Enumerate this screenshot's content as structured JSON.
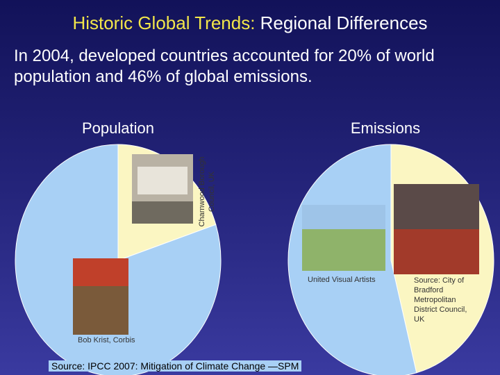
{
  "title": {
    "lead": "Historic Global Trends:",
    "rest": "Regional Differences"
  },
  "subtitle": "In 2004, developed countries accounted for 20% of world population and 46% of global emissions.",
  "chart_data": [
    {
      "type": "pie",
      "title": "Population",
      "values": [
        20,
        80
      ],
      "colors": [
        "#fbf6c2",
        "#a8d0f5"
      ]
    },
    {
      "type": "pie",
      "title": "Emissions",
      "values": [
        46,
        54
      ],
      "colors": [
        "#fbf6c2",
        "#a8d0f5"
      ]
    }
  ],
  "photo_credits": [
    "Charnwood Borough Council, UK",
    "Bob Krist, Corbis",
    "United Visual Artists",
    "Source: City of Bradford Metropolitan District Council, UK"
  ],
  "source": "Source: IPCC 2007: Mitigation of Climate Change —SPM"
}
